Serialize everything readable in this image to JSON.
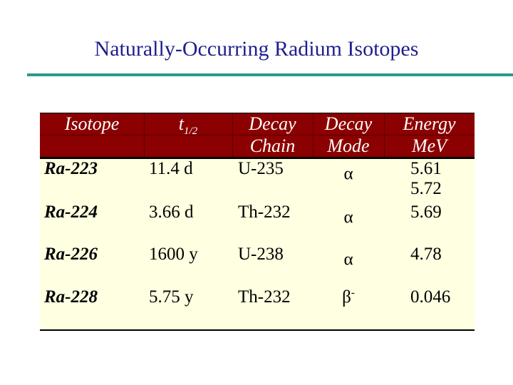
{
  "title": "Naturally-Occurring Radium Isotopes",
  "table": {
    "headers": {
      "isotope": "Isotope",
      "half_life_main": "t",
      "half_life_sub": "1/2",
      "decay_chain_line1": "Decay",
      "decay_chain_line2": "Chain",
      "decay_mode_line1": "Decay",
      "decay_mode_line2": "Mode",
      "energy_line1": "Energy",
      "energy_line2": "MeV"
    },
    "rows": [
      {
        "isotope": "Ra-223",
        "half_life": "11.4 d",
        "chain": "U-235",
        "mode": "α",
        "mode_sup": "",
        "energy": "5.61",
        "energy2": "5.72"
      },
      {
        "isotope": "Ra-224",
        "half_life": "3.66 d",
        "chain": "Th-232",
        "mode": "α",
        "mode_sup": "",
        "energy": "5.69"
      },
      {
        "isotope": "Ra-226",
        "half_life": "1600 y",
        "chain": "U-238",
        "mode": "α",
        "mode_sup": "",
        "energy": "4.78"
      },
      {
        "isotope": "Ra-228",
        "half_life": "5.75 y",
        "chain": "Th-232",
        "mode": "β",
        "mode_sup": "-",
        "energy": "0.046"
      }
    ]
  }
}
